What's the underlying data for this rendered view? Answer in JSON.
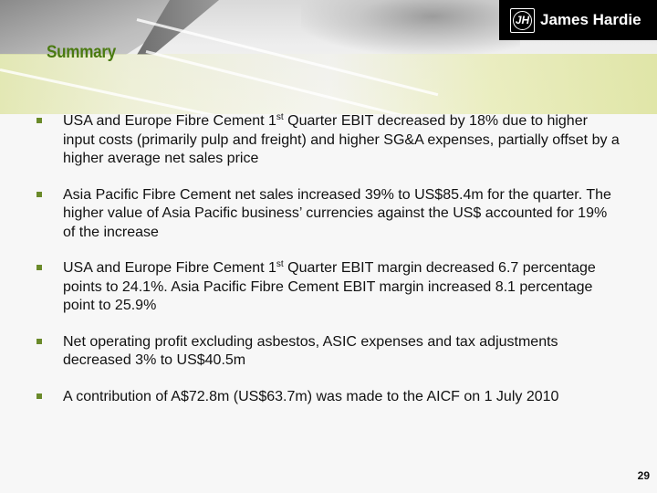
{
  "brand": {
    "name": "James Hardie",
    "mark": "JH"
  },
  "slide": {
    "title": "Summary",
    "page_number": "29"
  },
  "bullets": [
    {
      "lines": [
        {
          "pre": "USA and Europe Fibre Cement 1",
          "sup": "st",
          "post": " Quarter EBIT decreased by 18% due to higher"
        },
        {
          "pre": "input costs (primarily pulp and freight) and higher SG&A expenses, partially offset by a"
        },
        {
          "pre": "higher average net sales price"
        }
      ]
    },
    {
      "lines": [
        {
          "pre": "Asia Pacific Fibre Cement net sales increased 39% to US$85.4m for the quarter.  The"
        },
        {
          "pre": "higher value of Asia Pacific business’ currencies against the US$ accounted for 19%"
        },
        {
          "pre": "of the increase"
        }
      ]
    },
    {
      "lines": [
        {
          "pre": "USA and Europe Fibre Cement 1",
          "sup": "st",
          "post": " Quarter EBIT margin decreased 6.7 percentage"
        },
        {
          "pre": "points to 24.1%.  Asia Pacific Fibre Cement EBIT margin increased 8.1 percentage"
        },
        {
          "pre": "point to 25.9%"
        }
      ]
    },
    {
      "lines": [
        {
          "pre": "Net operating profit excluding asbestos, ASIC expenses and tax adjustments"
        },
        {
          "pre": "decreased 3% to US$40.5m"
        }
      ]
    },
    {
      "lines": [
        {
          "pre": "A contribution of A$72.8m (US$63.7m) was made to the AICF on 1 July 2010"
        }
      ]
    }
  ],
  "colors": {
    "title": "#4a7a10",
    "bullet": "#6a8a2a",
    "logo_bg": "#000000"
  }
}
